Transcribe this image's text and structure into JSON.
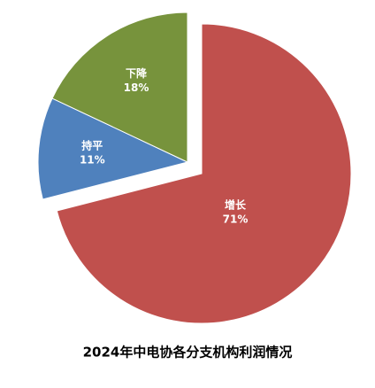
{
  "chart_data": {
    "type": "pie",
    "title": "2024年中电协各分支机构利润情况",
    "categories": [
      "增长",
      "持平",
      "下降"
    ],
    "values": [
      71,
      11,
      18
    ],
    "value_labels": [
      "71%",
      "11%",
      "18%"
    ],
    "colors": [
      "#c0504d",
      "#4f81bd",
      "#77933c"
    ]
  }
}
